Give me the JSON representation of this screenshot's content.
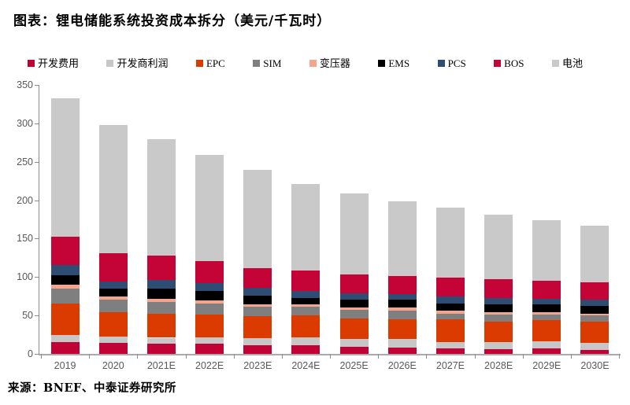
{
  "page": {
    "title": "图表：锂电储能系统投资成本拆分（美元/千瓦时）",
    "source": "来源：BNEF、中泰证券研究所"
  },
  "colors": {
    "axis_text": "#595959",
    "axis_line": "#8c8c8c",
    "baseline": "#ababab",
    "background": "#ffffff"
  },
  "chart_data": {
    "type": "bar",
    "stacked": true,
    "title": "锂电储能系统投资成本拆分",
    "unit": "美元/千瓦时",
    "legend_position": "top",
    "grid": false,
    "ylim": [
      0,
      350
    ],
    "ytick_step": 50,
    "yticks": [
      0,
      50,
      100,
      150,
      200,
      250,
      300,
      350
    ],
    "categories": [
      "2019",
      "2020",
      "2021E",
      "2022E",
      "2023E",
      "2024E",
      "2025E",
      "2026E",
      "2027E",
      "2028E",
      "2029E",
      "2030E"
    ],
    "series": [
      {
        "name": "开发费用",
        "color": "#c00334",
        "values": [
          15,
          14,
          13,
          13,
          11,
          11,
          9,
          8,
          7,
          6,
          7,
          5
        ]
      },
      {
        "name": "开发商利润",
        "color": "#c7c7c7",
        "values": [
          10,
          9,
          8,
          9,
          9,
          10,
          10,
          11,
          8,
          9,
          9,
          9
        ]
      },
      {
        "name": "EPC",
        "color": "#dc3b00",
        "values": [
          41,
          31,
          31,
          29,
          29,
          29,
          27,
          26,
          30,
          27,
          28,
          28
        ]
      },
      {
        "name": "SIM",
        "color": "#7f7f7f",
        "values": [
          19,
          17,
          16,
          15,
          12,
          11,
          11,
          11,
          7,
          9,
          7,
          8
        ]
      },
      {
        "name": "变压器",
        "color": "#f4a58e",
        "values": [
          5,
          4,
          4,
          4,
          4,
          4,
          3,
          4,
          4,
          3,
          3,
          2
        ]
      },
      {
        "name": "EMS",
        "color": "#000000",
        "values": [
          12,
          10,
          13,
          12,
          11,
          8,
          11,
          11,
          10,
          10,
          10,
          10
        ]
      },
      {
        "name": "PCS",
        "color": "#2f4d73",
        "values": [
          14,
          9,
          11,
          10,
          10,
          9,
          8,
          7,
          9,
          9,
          8,
          9
        ]
      },
      {
        "name": "BOS",
        "color": "#c40337",
        "values": [
          37,
          37,
          32,
          29,
          26,
          27,
          24,
          23,
          24,
          24,
          23,
          22
        ]
      },
      {
        "name": "电池",
        "color": "#c9c9c9",
        "values": [
          180,
          167,
          151,
          138,
          128,
          112,
          106,
          98,
          91,
          84,
          79,
          74
        ]
      }
    ],
    "totals": [
      333,
      298,
      279,
      259,
      240,
      221,
      209,
      199,
      190,
      181,
      174,
      167
    ]
  }
}
